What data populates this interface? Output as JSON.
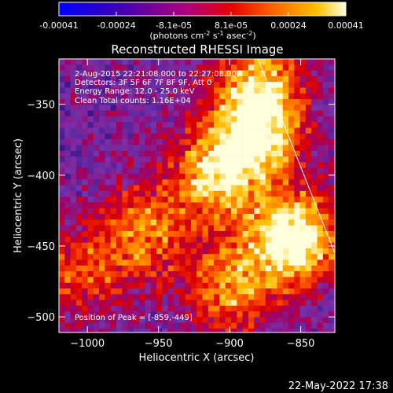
{
  "chart_data": {
    "type": "heatmap",
    "title": "Reconstructed RHESSI Image",
    "xlabel": "Heliocentric X (arcsec)",
    "ylabel": "Heliocentric Y (arcsec)",
    "xlim": [
      -1020,
      -826
    ],
    "ylim": [
      -511,
      -318
    ],
    "xticks": [
      -1000,
      -950,
      -900,
      -850
    ],
    "yticks": [
      -350,
      -400,
      -450,
      -500
    ],
    "colorbar": {
      "min": -0.00041,
      "max": 0.00041,
      "ticks": [
        "-0.00041",
        "-0.00024",
        "-8.1e-05",
        "8.1e-05",
        "0.00024",
        "0.00041"
      ],
      "unit_label": "(photons cm",
      "unit_sup1": "-2",
      "unit_mid1": " s",
      "unit_sup2": "-1",
      "unit_mid2": " asec",
      "unit_sup3": "-2",
      "unit_end": ")"
    },
    "annotations": {
      "time": "2-Aug-2015 22:21:08.000 to 22:27:08.000",
      "detectors": "Detectors: 3F 5F 6F 7F 8F 9F, Att 0",
      "energy": "Energy Range: 12.0 - 25.0 keV",
      "clean": "Clean     Total counts: 1.16E+04",
      "peak": "Position of Peak = [-859,-449]"
    },
    "limb_line": {
      "x": [
        -880,
        -826
      ],
      "y": [
        -318,
        -455
      ]
    },
    "bright_regions": [
      {
        "x": -880,
        "y": -370,
        "intensity": 0.85
      },
      {
        "x": -855,
        "y": -445,
        "intensity": 1.0
      },
      {
        "x": -910,
        "y": -400,
        "intensity": 0.7
      },
      {
        "x": -960,
        "y": -440,
        "intensity": 0.55
      },
      {
        "x": -900,
        "y": -480,
        "intensity": 0.6
      },
      {
        "x": -1005,
        "y": -470,
        "intensity": 0.45
      },
      {
        "x": -880,
        "y": -330,
        "intensity": 0.6
      }
    ]
  },
  "footer": {
    "timestamp": "22-May-2022 17:38"
  },
  "colors": {
    "background": "#000000",
    "text": "#ffffff"
  }
}
